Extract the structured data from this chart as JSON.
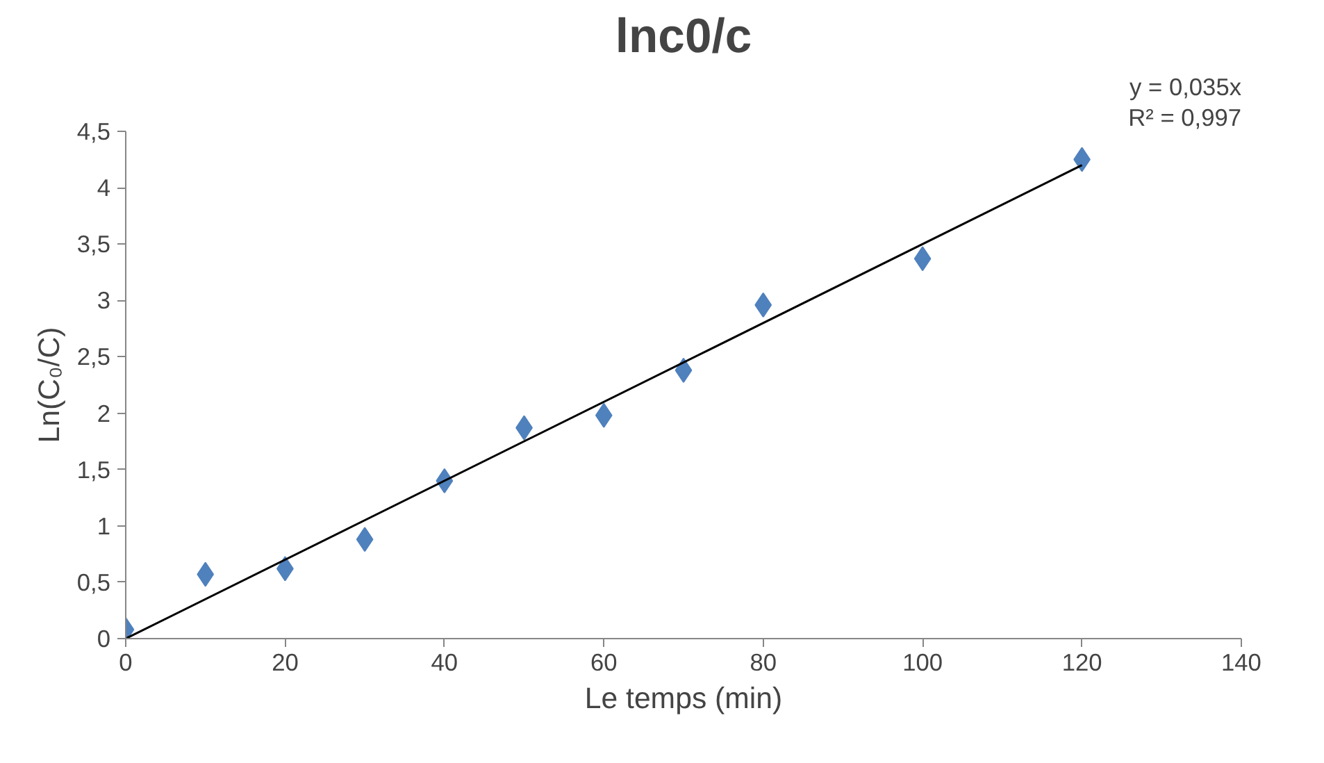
{
  "chart_data": {
    "type": "scatter",
    "title": "lnc0/c",
    "xlabel": "Le temps (min)",
    "ylabel": "Ln(C₀/C)",
    "x": [
      0,
      10,
      20,
      30,
      40,
      50,
      60,
      70,
      80,
      100,
      120
    ],
    "series": [
      {
        "color": "#4f81bd",
        "marker": "diamond",
        "values": [
          0.08,
          0.57,
          0.62,
          0.88,
          1.4,
          1.87,
          1.98,
          2.38,
          2.96,
          3.37,
          4.25
        ]
      },
      {
        "type": "line",
        "color": "#000000",
        "line_style": "solid",
        "x": [
          0,
          120
        ],
        "values": [
          0,
          4.2
        ]
      }
    ],
    "annotations": [
      "y = 0,035x",
      "R² = 0,997"
    ],
    "xlim": [
      0,
      140
    ],
    "xticks": [
      0,
      20,
      40,
      60,
      80,
      100,
      120,
      140
    ],
    "ylim": [
      0,
      4.5
    ],
    "yticks": [
      0,
      {
        "value": 0.5,
        "label": "0,5"
      },
      1,
      {
        "value": 1.5,
        "label": "1,5"
      },
      2,
      {
        "value": 2.5,
        "label": "2,5"
      },
      3,
      {
        "value": 3.5,
        "label": "3,5"
      },
      4,
      {
        "value": 4.5,
        "label": "4,5"
      }
    ],
    "grid": false
  }
}
